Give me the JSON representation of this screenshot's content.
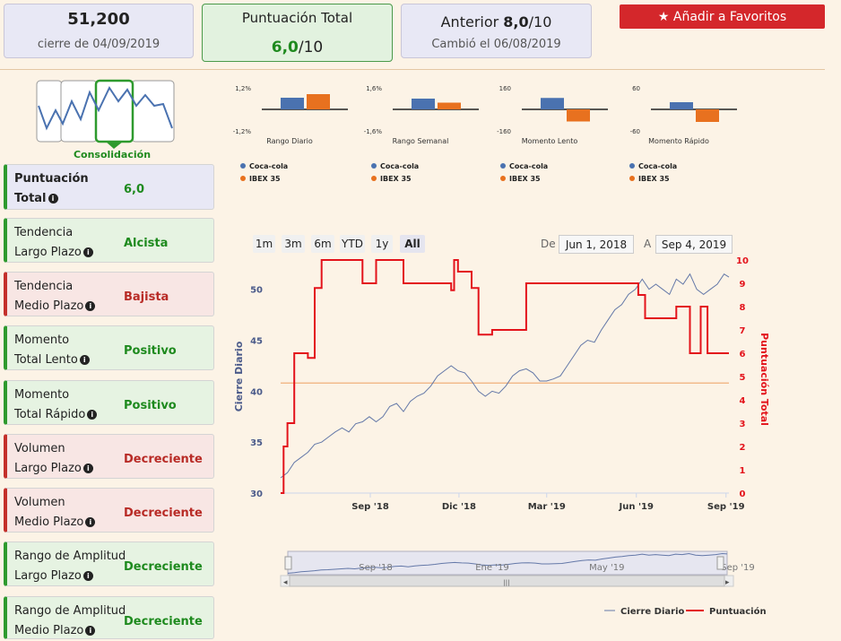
{
  "summary": {
    "close_value": "51,200",
    "close_date": "cierre de 04/09/2019",
    "score_label": "Puntuación Total",
    "score_value": "6,0",
    "score_suffix": "/10",
    "prev_label": "Anterior",
    "prev_value": "8,0",
    "prev_suffix": "/10",
    "prev_change": "Cambió el 06/08/2019"
  },
  "favorite_button": "Añadir a Favoritos",
  "pattern": {
    "label": "Consolidación",
    "icon": "consolidation-pattern-icon"
  },
  "metrics": [
    {
      "line1": "Puntuación",
      "line2": "Total",
      "value": "6,0",
      "status": "neutral"
    },
    {
      "line1": "Tendencia",
      "line2": "Largo Plazo",
      "value": "Alcista",
      "status": "good"
    },
    {
      "line1": "Tendencia",
      "line2": "Medio Plazo",
      "value": "Bajista",
      "status": "bad"
    },
    {
      "line1": "Momento",
      "line2": "Total Lento",
      "value": "Positivo",
      "status": "good"
    },
    {
      "line1": "Momento",
      "line2": "Total Rápido",
      "value": "Positivo",
      "status": "good"
    },
    {
      "line1": "Volumen",
      "line2": "Largo Plazo",
      "value": "Decreciente",
      "status": "bad"
    },
    {
      "line1": "Volumen",
      "line2": "Medio Plazo",
      "value": "Decreciente",
      "status": "bad"
    },
    {
      "line1": "Rango de Amplitud",
      "line2": "Largo Plazo",
      "value": "Decreciente",
      "status": "good"
    },
    {
      "line1": "Rango de Amplitud",
      "line2": "Medio Plazo",
      "value": "Decreciente",
      "status": "good"
    }
  ],
  "colors": {
    "coca": "#4a72b0",
    "ibex": "#e8711f",
    "score_line": "#e3131b",
    "close_line": "#6478a8",
    "ref_line": "#f0b07a"
  },
  "chart_data": [
    {
      "type": "bar",
      "title": "Rango Diario",
      "categories": [
        "Coca-cola",
        "IBEX 35"
      ],
      "values": [
        0.65,
        0.85
      ],
      "ylim": [
        -1.2,
        1.2
      ],
      "ytick_labels": [
        "1,2%",
        "-1,2%"
      ]
    },
    {
      "type": "bar",
      "title": "Rango Semanal",
      "categories": [
        "Coca-cola",
        "IBEX 35"
      ],
      "values": [
        0.8,
        0.5
      ],
      "ylim": [
        -1.6,
        1.6
      ],
      "ytick_labels": [
        "1,6%",
        "-1,6%"
      ]
    },
    {
      "type": "bar",
      "title": "Momento Lento",
      "categories": [
        "Coca-cola",
        "IBEX 35"
      ],
      "values": [
        85,
        -90
      ],
      "ylim": [
        -160,
        160
      ],
      "ytick_labels": [
        "160",
        "-160"
      ]
    },
    {
      "type": "bar",
      "title": "Momento Rápido",
      "categories": [
        "Coca-cola",
        "IBEX 35"
      ],
      "values": [
        20,
        -35
      ],
      "ylim": [
        -60,
        60
      ],
      "ytick_labels": [
        "60",
        "-60"
      ]
    },
    {
      "type": "line",
      "legend_position": "bottom-right",
      "x_range": [
        "2018-06-01",
        "2019-09-04"
      ],
      "xticks": [
        "Sep '18",
        "Dic '18",
        "Mar '19",
        "Jun '19",
        "Sep '19"
      ],
      "y_left": {
        "label": "Cierre Diario",
        "ticks": [
          30,
          35,
          40,
          45,
          50
        ],
        "range": [
          30,
          52
        ]
      },
      "y_right": {
        "label": "Puntuación Total",
        "ticks": [
          0,
          1,
          2,
          3,
          4,
          5,
          6,
          7,
          8,
          9,
          10
        ],
        "range": [
          0,
          10
        ]
      },
      "reference_line": 40.8,
      "series": [
        {
          "name": "Cierre Diario",
          "axis": "left",
          "points": [
            [
              "2018-06-01",
              31.5
            ],
            [
              "2018-06-08",
              32.0
            ],
            [
              "2018-06-15",
              33.0
            ],
            [
              "2018-06-22",
              33.5
            ],
            [
              "2018-06-29",
              34.0
            ],
            [
              "2018-07-06",
              34.8
            ],
            [
              "2018-07-13",
              35.0
            ],
            [
              "2018-07-20",
              35.5
            ],
            [
              "2018-07-27",
              36.0
            ],
            [
              "2018-08-03",
              36.4
            ],
            [
              "2018-08-10",
              36.0
            ],
            [
              "2018-08-17",
              36.8
            ],
            [
              "2018-08-24",
              37.0
            ],
            [
              "2018-08-31",
              37.5
            ],
            [
              "2018-09-07",
              37.0
            ],
            [
              "2018-09-14",
              37.5
            ],
            [
              "2018-09-21",
              38.5
            ],
            [
              "2018-09-28",
              38.8
            ],
            [
              "2018-10-05",
              38.0
            ],
            [
              "2018-10-12",
              39.0
            ],
            [
              "2018-10-19",
              39.5
            ],
            [
              "2018-10-26",
              39.8
            ],
            [
              "2018-11-02",
              40.5
            ],
            [
              "2018-11-09",
              41.5
            ],
            [
              "2018-11-16",
              42.0
            ],
            [
              "2018-11-23",
              42.5
            ],
            [
              "2018-11-30",
              42.0
            ],
            [
              "2018-12-07",
              41.8
            ],
            [
              "2018-12-14",
              41.0
            ],
            [
              "2018-12-21",
              40.0
            ],
            [
              "2018-12-28",
              39.5
            ],
            [
              "2019-01-04",
              40.0
            ],
            [
              "2019-01-11",
              39.8
            ],
            [
              "2019-01-18",
              40.5
            ],
            [
              "2019-01-25",
              41.5
            ],
            [
              "2019-02-01",
              42.0
            ],
            [
              "2019-02-08",
              42.2
            ],
            [
              "2019-02-15",
              41.8
            ],
            [
              "2019-02-22",
              41.0
            ],
            [
              "2019-03-01",
              41.0
            ],
            [
              "2019-03-08",
              41.2
            ],
            [
              "2019-03-15",
              41.5
            ],
            [
              "2019-03-22",
              42.5
            ],
            [
              "2019-03-29",
              43.5
            ],
            [
              "2019-04-05",
              44.5
            ],
            [
              "2019-04-12",
              45.0
            ],
            [
              "2019-04-19",
              44.8
            ],
            [
              "2019-04-26",
              46.0
            ],
            [
              "2019-05-03",
              47.0
            ],
            [
              "2019-05-10",
              48.0
            ],
            [
              "2019-05-17",
              48.5
            ],
            [
              "2019-05-24",
              49.5
            ],
            [
              "2019-05-31",
              50.0
            ],
            [
              "2019-06-07",
              51.0
            ],
            [
              "2019-06-14",
              50.0
            ],
            [
              "2019-06-21",
              50.5
            ],
            [
              "2019-06-28",
              50.0
            ],
            [
              "2019-07-05",
              49.5
            ],
            [
              "2019-07-12",
              51.0
            ],
            [
              "2019-07-19",
              50.5
            ],
            [
              "2019-07-26",
              51.5
            ],
            [
              "2019-08-02",
              50.0
            ],
            [
              "2019-08-09",
              49.5
            ],
            [
              "2019-08-16",
              50.0
            ],
            [
              "2019-08-23",
              50.5
            ],
            [
              "2019-08-30",
              51.5
            ],
            [
              "2019-09-04",
              51.2
            ]
          ]
        },
        {
          "name": "Puntuación",
          "axis": "right",
          "step": true,
          "points": [
            [
              "2018-06-01",
              0
            ],
            [
              "2018-06-04",
              2
            ],
            [
              "2018-06-08",
              3
            ],
            [
              "2018-06-15",
              6
            ],
            [
              "2018-06-29",
              5.8
            ],
            [
              "2018-07-06",
              8.8
            ],
            [
              "2018-07-13",
              10
            ],
            [
              "2018-08-24",
              9
            ],
            [
              "2018-09-07",
              10
            ],
            [
              "2018-10-05",
              9
            ],
            [
              "2018-11-23",
              8.7
            ],
            [
              "2018-11-26",
              10
            ],
            [
              "2018-11-30",
              9.5
            ],
            [
              "2018-12-14",
              8.8
            ],
            [
              "2018-12-21",
              6.8
            ],
            [
              "2019-01-04",
              7.0
            ],
            [
              "2019-02-08",
              9
            ],
            [
              "2019-06-03",
              8.5
            ],
            [
              "2019-06-10",
              7.5
            ],
            [
              "2019-07-12",
              8.0
            ],
            [
              "2019-07-26",
              6.0
            ],
            [
              "2019-08-06",
              8.0
            ],
            [
              "2019-08-13",
              6.0
            ],
            [
              "2019-09-04",
              6.0
            ]
          ]
        }
      ]
    }
  ],
  "range_selector": {
    "buttons": [
      "1m",
      "3m",
      "6m",
      "YTD",
      "1y",
      "All"
    ],
    "active": "All",
    "from_label": "De",
    "from_value": "Jun 1, 2018",
    "to_label": "A",
    "to_value": "Sep 4, 2019"
  },
  "navigator": {
    "labels": [
      "Sep '18",
      "Ene '19",
      "May '19",
      "Sep '19"
    ]
  }
}
